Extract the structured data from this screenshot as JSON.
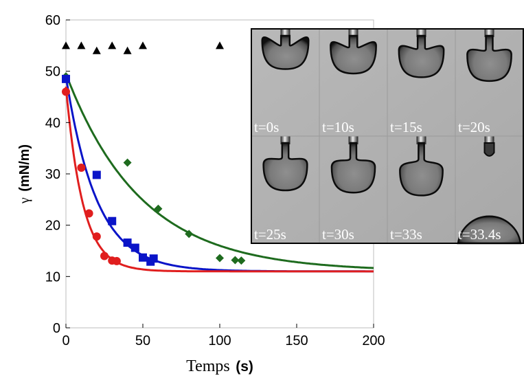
{
  "chart_data": {
    "type": "scatter",
    "xlabel": {
      "text": "Temps",
      "unit": "(s)"
    },
    "ylabel": {
      "symbol": "γ",
      "unit": "(mN/m)"
    },
    "xlim": [
      0,
      200
    ],
    "ylim": [
      0,
      60
    ],
    "xticks": [
      0,
      50,
      100,
      150,
      200
    ],
    "yticks": [
      0,
      10,
      20,
      30,
      40,
      50,
      60
    ],
    "grid": false,
    "legend": "none",
    "series": [
      {
        "marker": "triangle",
        "color": "#000000",
        "points": [
          [
            0,
            55
          ],
          [
            10,
            55
          ],
          [
            20,
            54
          ],
          [
            30,
            55
          ],
          [
            40,
            54
          ],
          [
            50,
            55
          ],
          [
            100,
            55
          ]
        ]
      },
      {
        "marker": "diamond",
        "color": "#1e6b1e",
        "points": [
          [
            0,
            49
          ],
          [
            40,
            32.2
          ],
          [
            60,
            23.2
          ],
          [
            80,
            18.3
          ],
          [
            100,
            13.6
          ],
          [
            110,
            13.2
          ],
          [
            114,
            13.1
          ]
        ],
        "fit": {
          "type": "exponential",
          "y0": 49.5,
          "yinf": 11,
          "tau": 49
        }
      },
      {
        "marker": "square",
        "color": "#0a14c8",
        "points": [
          [
            0,
            48.5
          ],
          [
            20,
            29.8
          ],
          [
            30,
            20.8
          ],
          [
            40,
            16.6
          ],
          [
            45,
            15.6
          ],
          [
            50,
            13.7
          ],
          [
            55,
            12.9
          ],
          [
            57,
            13.5
          ]
        ],
        "fit": {
          "type": "exponential",
          "y0": 49,
          "yinf": 11,
          "tau": 20
        }
      },
      {
        "marker": "circle",
        "color": "#e01e1e",
        "points": [
          [
            0,
            46
          ],
          [
            10,
            31.2
          ],
          [
            15,
            22.3
          ],
          [
            20,
            17.8
          ],
          [
            25,
            14
          ],
          [
            30,
            13.1
          ],
          [
            33,
            13
          ]
        ],
        "fit": {
          "type": "exponential",
          "y0": 47,
          "yinf": 11,
          "tau": 11
        }
      }
    ]
  },
  "inset": {
    "frames": [
      {
        "label": "t=0s",
        "neck": 0.08,
        "detached": false
      },
      {
        "label": "t=10s",
        "neck": 0.28,
        "detached": false
      },
      {
        "label": "t=15s",
        "neck": 0.45,
        "detached": false
      },
      {
        "label": "t=20s",
        "neck": 0.62,
        "detached": false
      },
      {
        "label": "t=25s",
        "neck": 0.72,
        "detached": false
      },
      {
        "label": "t=30s",
        "neck": 0.82,
        "detached": false
      },
      {
        "label": "t=33s",
        "neck": 0.95,
        "detached": false
      },
      {
        "label": "t=33.4s",
        "neck": 1.0,
        "detached": true
      }
    ]
  }
}
